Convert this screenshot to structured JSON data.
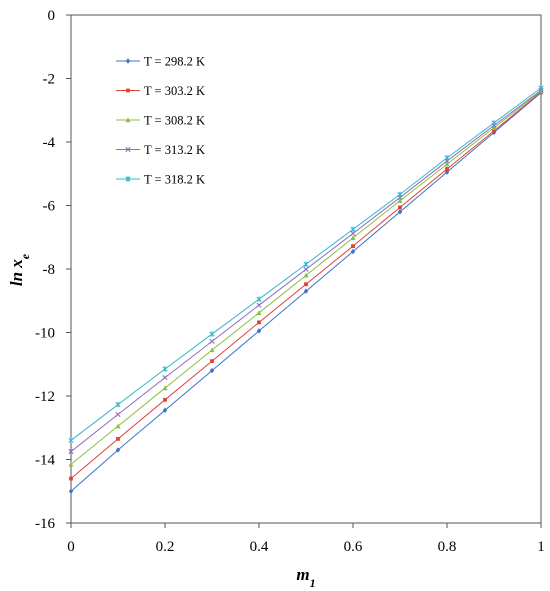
{
  "chart_data": {
    "type": "line",
    "title": "",
    "xlabel": "m",
    "xlabel_sub": "1",
    "ylabel": "ln x",
    "ylabel_sub": "e",
    "xlim": [
      0,
      1
    ],
    "ylim": [
      -16,
      0
    ],
    "xticks": [
      0,
      0.2,
      0.4,
      0.6,
      0.8,
      1
    ],
    "xtick_labels": [
      "0",
      "0.2",
      "0.4",
      "0.6",
      "0.8",
      "1"
    ],
    "yticks": [
      0,
      -2,
      -4,
      -6,
      -8,
      -10,
      -12,
      -14,
      -16
    ],
    "ytick_labels": [
      "0",
      "-2",
      "-4",
      "-6",
      "-8",
      "-10",
      "-12",
      "-14",
      "-16"
    ],
    "grid": false,
    "legend_position": "top-left",
    "x": [
      0,
      0.1,
      0.2,
      0.3,
      0.4,
      0.5,
      0.6,
      0.7,
      0.8,
      0.9,
      1.0
    ],
    "series": [
      {
        "name": "T = 298.2 K",
        "color": "#3a74c4",
        "marker": "diamond",
        "values": [
          -15.0,
          -13.7,
          -12.45,
          -11.2,
          -9.95,
          -8.7,
          -7.45,
          -6.2,
          -4.95,
          -3.7,
          -2.45
        ]
      },
      {
        "name": "T = 303.2 K",
        "color": "#e0403a",
        "marker": "square",
        "values": [
          -14.6,
          -13.35,
          -12.12,
          -10.9,
          -9.68,
          -8.48,
          -7.28,
          -6.06,
          -4.85,
          -3.65,
          -2.43
        ]
      },
      {
        "name": "T = 308.2 K",
        "color": "#8cbf3f",
        "marker": "triangle",
        "values": [
          -14.15,
          -12.95,
          -11.75,
          -10.55,
          -9.38,
          -8.2,
          -7.02,
          -5.85,
          -4.7,
          -3.55,
          -2.4
        ]
      },
      {
        "name": "T = 313.2 K",
        "color": "#8e6fbf",
        "marker": "x",
        "values": [
          -13.75,
          -12.58,
          -11.42,
          -10.28,
          -9.14,
          -8.01,
          -6.88,
          -5.75,
          -4.6,
          -3.48,
          -2.37
        ]
      },
      {
        "name": "T = 318.2 K",
        "color": "#35b8cf",
        "marker": "star",
        "values": [
          -13.4,
          -12.27,
          -11.15,
          -10.05,
          -8.95,
          -7.85,
          -6.75,
          -5.65,
          -4.5,
          -3.4,
          -2.3
        ]
      }
    ]
  }
}
